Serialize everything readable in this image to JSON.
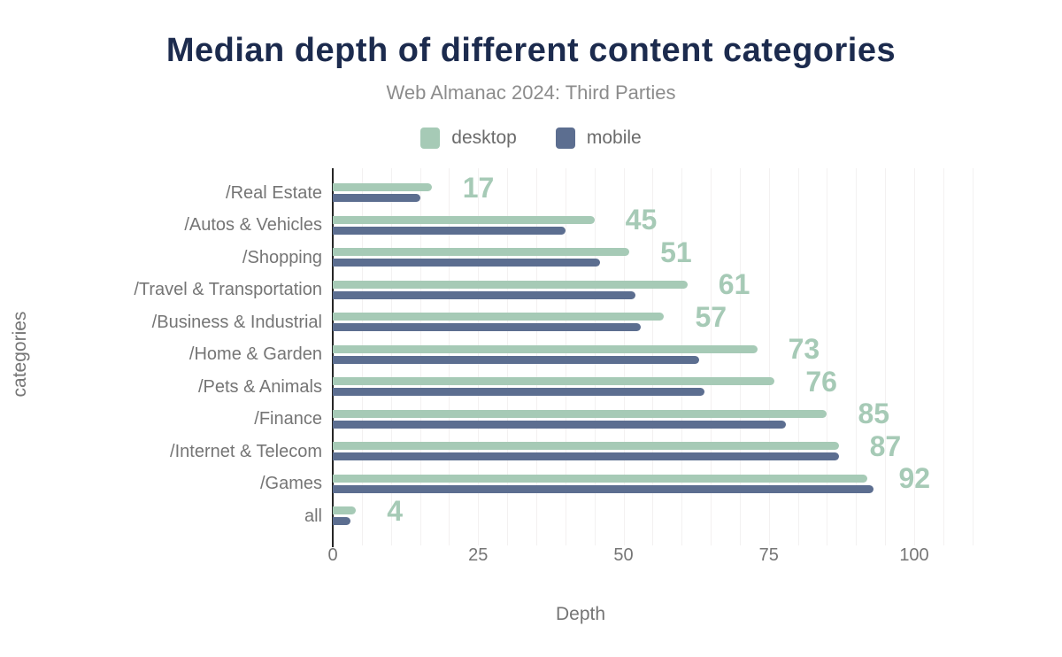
{
  "title": "Median depth of different content categories",
  "subtitle": "Web Almanac 2024: Third Parties",
  "colors": {
    "title": "#1c2b4e",
    "desktop": "#a6cab6",
    "mobile": "#5c6e90",
    "axis_line": "#262626",
    "gridline": "#f3f1f1",
    "muted_text": "#757575"
  },
  "legend": {
    "position": "top",
    "items": [
      {
        "label": "desktop",
        "color": "#a6cab6"
      },
      {
        "label": "mobile",
        "color": "#5c6e90"
      }
    ]
  },
  "chart_data": {
    "type": "bar",
    "orientation": "horizontal",
    "title": "Median depth of different content categories",
    "subtitle": "Web Almanac 2024: Third Parties",
    "xlabel": "Depth",
    "ylabel": "categories",
    "xlim": [
      0,
      110
    ],
    "xticks": [
      0,
      25,
      50,
      75,
      100
    ],
    "grid_step": 5,
    "grid": true,
    "legend_position": "top",
    "categories": [
      "/Real Estate",
      "/Autos & Vehicles",
      "/Shopping",
      "/Travel & Transportation",
      "/Business & Industrial",
      "/Home & Garden",
      "/Pets & Animals",
      "/Finance",
      "/Internet & Telecom",
      "/Games",
      "all"
    ],
    "series": [
      {
        "name": "desktop",
        "color": "#a6cab6",
        "values": [
          17,
          45,
          51,
          61,
          57,
          73,
          76,
          85,
          87,
          92,
          4
        ],
        "labeled": true
      },
      {
        "name": "mobile",
        "color": "#5c6e90",
        "values": [
          15,
          40,
          46,
          52,
          53,
          63,
          64,
          78,
          87,
          93,
          3
        ],
        "labeled": false
      }
    ],
    "value_labels": [
      17,
      45,
      51,
      61,
      57,
      73,
      76,
      85,
      87,
      92,
      4
    ]
  }
}
